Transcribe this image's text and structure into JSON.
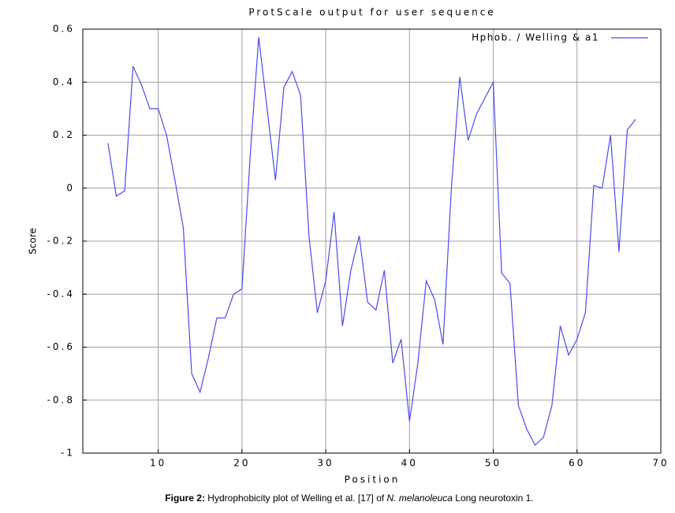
{
  "chart_data": {
    "type": "line",
    "title": "ProtScale output for user sequence",
    "xlabel": "Position",
    "ylabel": "Score",
    "x": [
      4,
      5,
      6,
      7,
      8,
      9,
      10,
      11,
      12,
      13,
      14,
      15,
      16,
      17,
      18,
      19,
      20,
      21,
      22,
      23,
      24,
      25,
      26,
      27,
      28,
      29,
      30,
      31,
      32,
      33,
      34,
      35,
      36,
      37,
      38,
      39,
      40,
      41,
      42,
      43,
      44,
      45,
      46,
      47,
      48,
      49,
      50,
      51,
      52,
      53,
      54,
      55,
      56,
      57,
      58,
      59,
      60,
      61,
      62,
      63,
      64,
      65,
      66,
      67
    ],
    "series": [
      {
        "name": "Hphob. / Welling & a1",
        "color": "#4b4bf0",
        "values": [
          0.17,
          -0.03,
          -0.01,
          0.46,
          0.39,
          0.3,
          0.3,
          0.2,
          0.03,
          -0.15,
          -0.7,
          -0.77,
          -0.64,
          -0.49,
          -0.49,
          -0.4,
          -0.38,
          0.13,
          0.57,
          0.3,
          0.03,
          0.38,
          0.44,
          0.35,
          -0.18,
          -0.47,
          -0.35,
          -0.09,
          -0.52,
          -0.31,
          -0.18,
          -0.43,
          -0.46,
          -0.31,
          -0.66,
          -0.57,
          -0.88,
          -0.66,
          -0.35,
          -0.42,
          -0.59,
          0.0,
          0.42,
          0.18,
          0.28,
          0.34,
          0.4,
          -0.32,
          -0.36,
          -0.82,
          -0.91,
          -0.97,
          -0.94,
          -0.82,
          -0.52,
          -0.63,
          -0.57,
          -0.47,
          0.01,
          0.0,
          0.2,
          -0.24,
          0.22,
          0.26
        ]
      }
    ],
    "xlim": [
      1,
      70
    ],
    "xticks": [
      10,
      20,
      30,
      40,
      50,
      60,
      70
    ],
    "ylim": [
      -1,
      0.6
    ],
    "yticks": [
      -1,
      -0.8,
      -0.6,
      -0.4,
      -0.2,
      0,
      0.2,
      0.4,
      0.6
    ],
    "grid": true,
    "legend": "top-right"
  },
  "caption": {
    "label": "Figure 2:",
    "text1": " Hydrophobicity plot of Welling et al. [17] of ",
    "species": "N. melanoleuca",
    "text2": " Long neurotoxin 1."
  }
}
